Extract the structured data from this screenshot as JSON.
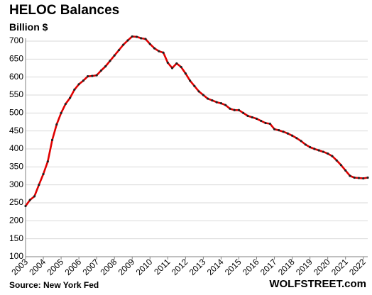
{
  "source": "Source: New York Fed",
  "brand": "WOLFSTREET.com",
  "chart_data": {
    "type": "line",
    "title": "HELOC Balances",
    "ylabel": "Billion $",
    "xlabel": "",
    "ylim": [
      100,
      700
    ],
    "yticks": [
      100,
      150,
      200,
      250,
      300,
      350,
      400,
      450,
      500,
      550,
      600,
      650,
      700
    ],
    "xticks": [
      "2003",
      "2004",
      "2005",
      "2006",
      "2007",
      "2008",
      "2009",
      "2010",
      "2011",
      "2012",
      "2013",
      "2014",
      "2015",
      "2016",
      "2017",
      "2018",
      "2019",
      "2020",
      "2021",
      "2022"
    ],
    "grid": "horizontal",
    "line_color": "#e00000",
    "marker_color": "#222222",
    "series": [
      {
        "x": [
          2003.0,
          2003.25,
          2003.5,
          2003.75,
          2004.0,
          2004.25,
          2004.5,
          2004.75,
          2005.0,
          2005.25,
          2005.5,
          2005.75,
          2006.0,
          2006.25,
          2006.5,
          2006.75,
          2007.0,
          2007.25,
          2007.5,
          2007.75,
          2008.0,
          2008.25,
          2008.5,
          2008.75,
          2009.0,
          2009.25,
          2009.5,
          2009.75,
          2010.0,
          2010.25,
          2010.5,
          2010.75,
          2011.0,
          2011.25,
          2011.5,
          2011.75,
          2012.0,
          2012.25,
          2012.5,
          2012.75,
          2013.0,
          2013.25,
          2013.5,
          2013.75,
          2014.0,
          2014.25,
          2014.5,
          2014.75,
          2015.0,
          2015.25,
          2015.5,
          2015.75,
          2016.0,
          2016.25,
          2016.5,
          2016.75,
          2017.0,
          2017.25,
          2017.5,
          2017.75,
          2018.0,
          2018.25,
          2018.5,
          2018.75,
          2019.0,
          2019.25,
          2019.5,
          2019.75,
          2020.0,
          2020.25,
          2020.5,
          2020.75,
          2021.0,
          2021.25,
          2021.5,
          2021.75,
          2022.0,
          2022.25
        ],
        "values": [
          241,
          258,
          268,
          300,
          330,
          365,
          425,
          468,
          500,
          525,
          542,
          565,
          580,
          590,
          602,
          603,
          605,
          618,
          630,
          645,
          660,
          675,
          690,
          702,
          713,
          712,
          708,
          706,
          692,
          680,
          672,
          668,
          640,
          625,
          638,
          628,
          610,
          590,
          575,
          560,
          550,
          540,
          535,
          530,
          527,
          522,
          512,
          508,
          508,
          500,
          492,
          488,
          484,
          478,
          472,
          470,
          455,
          452,
          448,
          443,
          437,
          430,
          422,
          412,
          405,
          400,
          396,
          392,
          387,
          380,
          368,
          355,
          340,
          325,
          320,
          319,
          318,
          320
        ]
      }
    ]
  }
}
